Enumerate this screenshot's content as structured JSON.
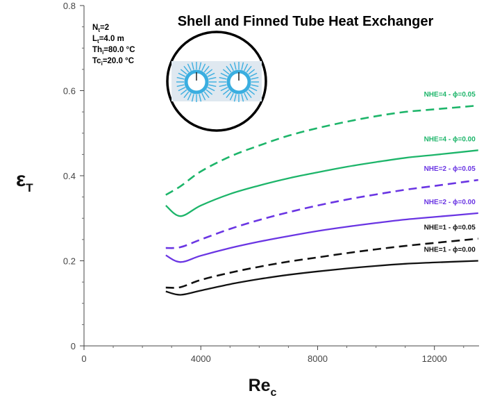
{
  "chart_data": {
    "type": "line",
    "title": "Shell and Finned Tube Heat Exchanger",
    "xlabel": {
      "main": "Re",
      "sub": "c"
    },
    "ylabel": {
      "main": "ε",
      "sub": "T"
    },
    "xlim": [
      0,
      13600
    ],
    "ylim": [
      0,
      0.8
    ],
    "xticks": [
      0,
      4000,
      8000,
      12000
    ],
    "xtick_labels": [
      "0",
      "4000",
      "8000",
      "12000"
    ],
    "yticks": [
      0,
      0.2,
      0.4,
      0.6,
      0.8
    ],
    "ytick_labels": [
      "0",
      "0.2",
      "0.4",
      "0.6",
      "0.8"
    ],
    "grid": false,
    "parameters": [
      {
        "main": "N",
        "sub": "t",
        "rest": "=2"
      },
      {
        "main": "L",
        "sub": "t",
        "rest": "=4.0 m"
      },
      {
        "main": "Th",
        "sub": "i",
        "rest": "=80.0 °C"
      },
      {
        "main": "Tc",
        "sub": "i",
        "rest": "=20.0 °C"
      }
    ],
    "series": [
      {
        "name": "NHE=4 - ϕ=0.05",
        "color": "#1db56a",
        "dashed": true,
        "x": [
          2800,
          3300,
          4000,
          5000,
          6000,
          7000,
          8000,
          9000,
          10000,
          11000,
          12000,
          13500
        ],
        "y": [
          0.355,
          0.375,
          0.41,
          0.445,
          0.471,
          0.494,
          0.512,
          0.527,
          0.54,
          0.55,
          0.556,
          0.565
        ]
      },
      {
        "name": "NHE=4 - ϕ=0.00",
        "color": "#1db56a",
        "dashed": false,
        "x": [
          2800,
          3300,
          4000,
          5000,
          6000,
          7000,
          8000,
          9000,
          10000,
          11000,
          12000,
          13500
        ],
        "y": [
          0.33,
          0.305,
          0.33,
          0.357,
          0.377,
          0.394,
          0.408,
          0.421,
          0.432,
          0.442,
          0.449,
          0.46
        ]
      },
      {
        "name": "NHE=2 - ϕ=0.05",
        "color": "#6a35e3",
        "dashed": true,
        "x": [
          2800,
          3300,
          4000,
          5000,
          6000,
          7000,
          8000,
          9000,
          10000,
          11000,
          12000,
          13500
        ],
        "y": [
          0.23,
          0.232,
          0.25,
          0.275,
          0.296,
          0.314,
          0.33,
          0.344,
          0.356,
          0.367,
          0.376,
          0.39
        ]
      },
      {
        "name": "NHE=2 - ϕ=0.00",
        "color": "#6a35e3",
        "dashed": false,
        "x": [
          2800,
          3300,
          4000,
          5000,
          6000,
          7000,
          8000,
          9000,
          10000,
          11000,
          12000,
          13500
        ],
        "y": [
          0.213,
          0.197,
          0.212,
          0.23,
          0.245,
          0.258,
          0.27,
          0.28,
          0.289,
          0.297,
          0.303,
          0.312
        ]
      },
      {
        "name": "NHE=1 - ϕ=0.05",
        "color": "#111111",
        "dashed": true,
        "x": [
          2800,
          3300,
          4000,
          5000,
          6000,
          7000,
          8000,
          9000,
          10000,
          11000,
          12000,
          13500
        ],
        "y": [
          0.137,
          0.138,
          0.155,
          0.172,
          0.186,
          0.198,
          0.208,
          0.218,
          0.227,
          0.235,
          0.242,
          0.252
        ]
      },
      {
        "name": "NHE=1 - ϕ=0.00",
        "color": "#111111",
        "dashed": false,
        "x": [
          2800,
          3300,
          4000,
          5000,
          6000,
          7000,
          8000,
          9000,
          10000,
          11000,
          12000,
          13500
        ],
        "y": [
          0.128,
          0.12,
          0.13,
          0.145,
          0.157,
          0.167,
          0.175,
          0.182,
          0.188,
          0.193,
          0.196,
          0.2
        ]
      }
    ]
  }
}
